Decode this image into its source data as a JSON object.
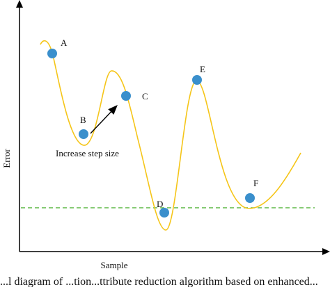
{
  "axes": {
    "ylabel": "Error",
    "xlabel": "Sample"
  },
  "curve_color": "#f5c518",
  "threshold_color": "#5fb847",
  "point_color": "#3a8fcc",
  "points": [
    {
      "label": "A"
    },
    {
      "label": "B"
    },
    {
      "label": "C"
    },
    {
      "label": "D"
    },
    {
      "label": "E"
    },
    {
      "label": "F"
    }
  ],
  "annotation": "Increase step size",
  "caption": "...l diagram of ...tion...ttribute reduction algorithm based on enhanced..."
}
